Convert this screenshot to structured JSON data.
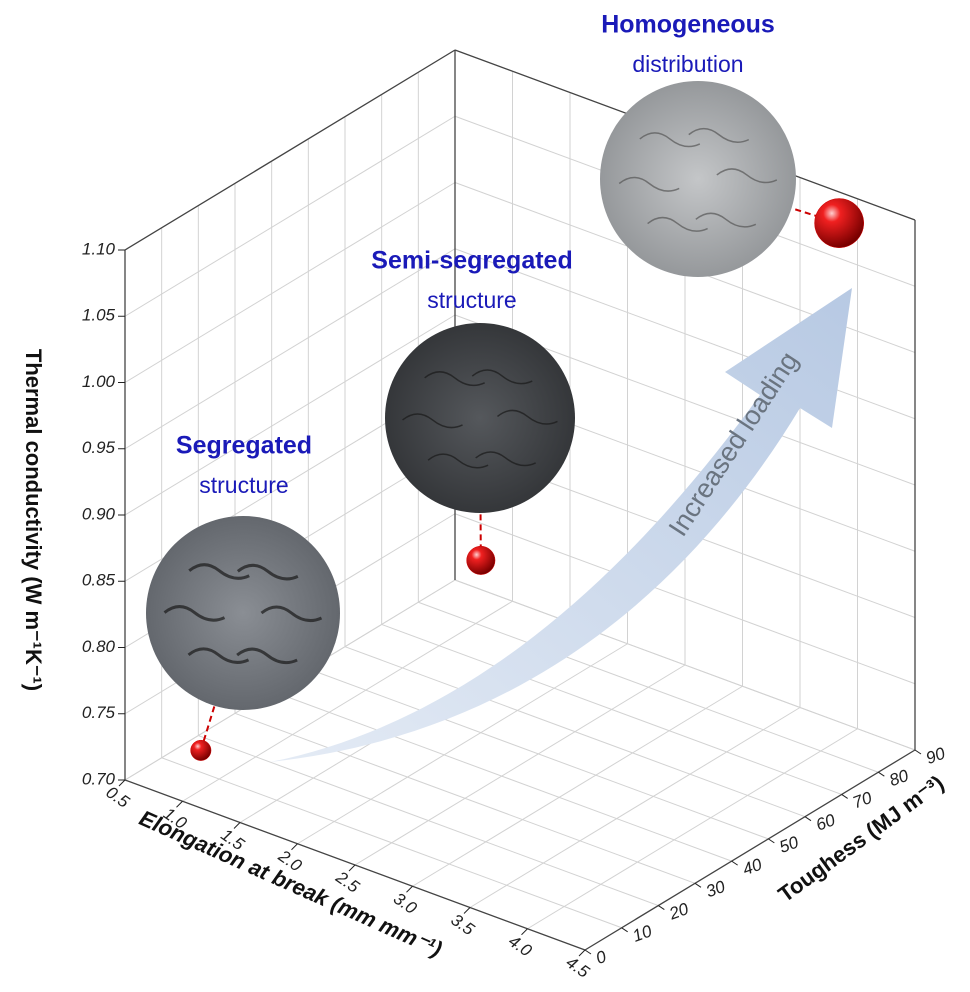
{
  "chart_data": {
    "type": "scatter3d",
    "xlabel": "Elongation at break (mm mm⁻¹)",
    "ylabel": "Toughess (MJ m⁻³)",
    "zlabel": "Thermal conductivity (W m⁻¹K⁻¹)",
    "xlim": [
      0.5,
      4.5
    ],
    "xticks": [
      0.5,
      {
        "value": 1,
        "label": "1.0"
      },
      1.5,
      {
        "value": 2,
        "label": "2.0"
      },
      2.5,
      {
        "value": 3,
        "label": "3.0"
      },
      3.5,
      {
        "value": 4,
        "label": "4.0"
      },
      4.5
    ],
    "ylim": [
      0,
      90
    ],
    "yticks": [
      0,
      10,
      20,
      30,
      40,
      50,
      60,
      70,
      80,
      90
    ],
    "zlim": [
      0.7,
      1.1
    ],
    "zticks": [
      {
        "value": 0.7,
        "label": "0.70"
      },
      0.75,
      {
        "value": 0.8,
        "label": "0.80"
      },
      0.85,
      {
        "value": 0.9,
        "label": "0.90"
      },
      0.95,
      {
        "value": 1,
        "label": "1.00"
      },
      1.05,
      {
        "value": 1.1,
        "label": "1.10"
      }
    ],
    "grid": true,
    "series": [
      {
        "color": "#d40000",
        "x": [
          1.0,
          2.0,
          4.0
        ],
        "y": [
          5,
          50,
          85
        ],
        "z": [
          0.73,
          0.83,
          1.09
        ]
      }
    ],
    "annotations": [
      {
        "title": "Segregated",
        "subtitle": "structure"
      },
      {
        "title": "Semi-segregated",
        "subtitle": "structure"
      },
      {
        "title": "Homogeneous",
        "subtitle": "distribution"
      }
    ],
    "arrow_label": "Increased loading"
  }
}
